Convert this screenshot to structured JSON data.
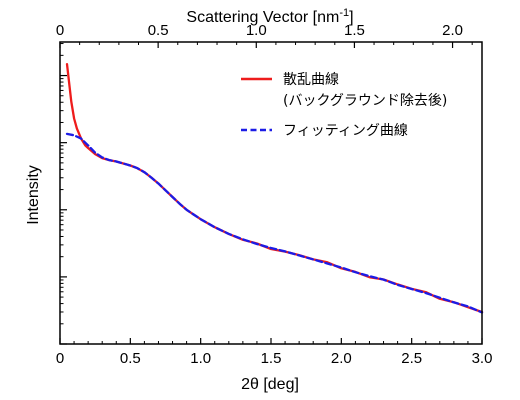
{
  "chart_data": {
    "type": "line",
    "xlabel": "2θ [deg]",
    "ylabel": "Intensity",
    "top_axis_label": "Scattering Vector [nm⁻¹]",
    "xlim": [
      0,
      3.0
    ],
    "x_ticks": [
      "0",
      "0.5",
      "1.0",
      "1.5",
      "2.0",
      "2.5",
      "3.0"
    ],
    "top_xlim": [
      0,
      2.15
    ],
    "top_ticks": [
      "0",
      "0.5",
      "1.0",
      "1.5",
      "2.0"
    ],
    "y_scale": "log",
    "ylim_decades": [
      0,
      4.5
    ],
    "y_tick_labels_shown": false,
    "grid": false,
    "legend_position": "top-right",
    "series": [
      {
        "name": "散乱曲線（バックグラウンド除去後）",
        "legend_lines": [
          "散乱曲線",
          "(バックグラウンド除去後)"
        ],
        "color": "#ee1c1c",
        "dash": "solid",
        "x": [
          0.05,
          0.08,
          0.1,
          0.12,
          0.15,
          0.18,
          0.2,
          0.25,
          0.3,
          0.35,
          0.4,
          0.45,
          0.5,
          0.55,
          0.6,
          0.65,
          0.7,
          0.75,
          0.8,
          0.85,
          0.9,
          0.95,
          1.0,
          1.1,
          1.2,
          1.3,
          1.4,
          1.5,
          1.6,
          1.7,
          1.8,
          1.9,
          2.0,
          2.1,
          2.2,
          2.3,
          2.4,
          2.5,
          2.6,
          2.7,
          2.8,
          2.9,
          3.0
        ],
        "log_y": [
          4.17,
          3.61,
          3.36,
          3.21,
          3.06,
          2.96,
          2.92,
          2.83,
          2.77,
          2.74,
          2.72,
          2.69,
          2.66,
          2.62,
          2.56,
          2.48,
          2.39,
          2.29,
          2.19,
          2.09,
          2.0,
          1.93,
          1.86,
          1.74,
          1.64,
          1.56,
          1.49,
          1.43,
          1.38,
          1.32,
          1.26,
          1.2,
          1.14,
          1.07,
          1.01,
          0.96,
          0.88,
          0.82,
          0.76,
          0.69,
          0.62,
          0.56,
          0.47
        ]
      },
      {
        "name": "フィッティング曲線",
        "color": "#1c1ce6",
        "dash": "dashed",
        "x": [
          0.05,
          0.1,
          0.15,
          0.2,
          0.25,
          0.3,
          0.35,
          0.4,
          0.45,
          0.5,
          0.55,
          0.6,
          0.65,
          0.7,
          0.75,
          0.8,
          0.85,
          0.9,
          0.95,
          1.0,
          1.1,
          1.2,
          1.3,
          1.4,
          1.5,
          1.6,
          1.7,
          1.8,
          1.9,
          2.0,
          2.1,
          2.2,
          2.3,
          2.4,
          2.5,
          2.6,
          2.7,
          2.8,
          2.9,
          3.0
        ],
        "log_y": [
          3.13,
          3.11,
          3.06,
          2.96,
          2.85,
          2.78,
          2.74,
          2.72,
          2.69,
          2.66,
          2.62,
          2.56,
          2.48,
          2.39,
          2.29,
          2.19,
          2.09,
          2.0,
          1.93,
          1.86,
          1.74,
          1.64,
          1.56,
          1.49,
          1.43,
          1.38,
          1.32,
          1.26,
          1.2,
          1.14,
          1.07,
          1.01,
          0.96,
          0.88,
          0.82,
          0.76,
          0.69,
          0.62,
          0.56,
          0.47
        ]
      }
    ]
  }
}
